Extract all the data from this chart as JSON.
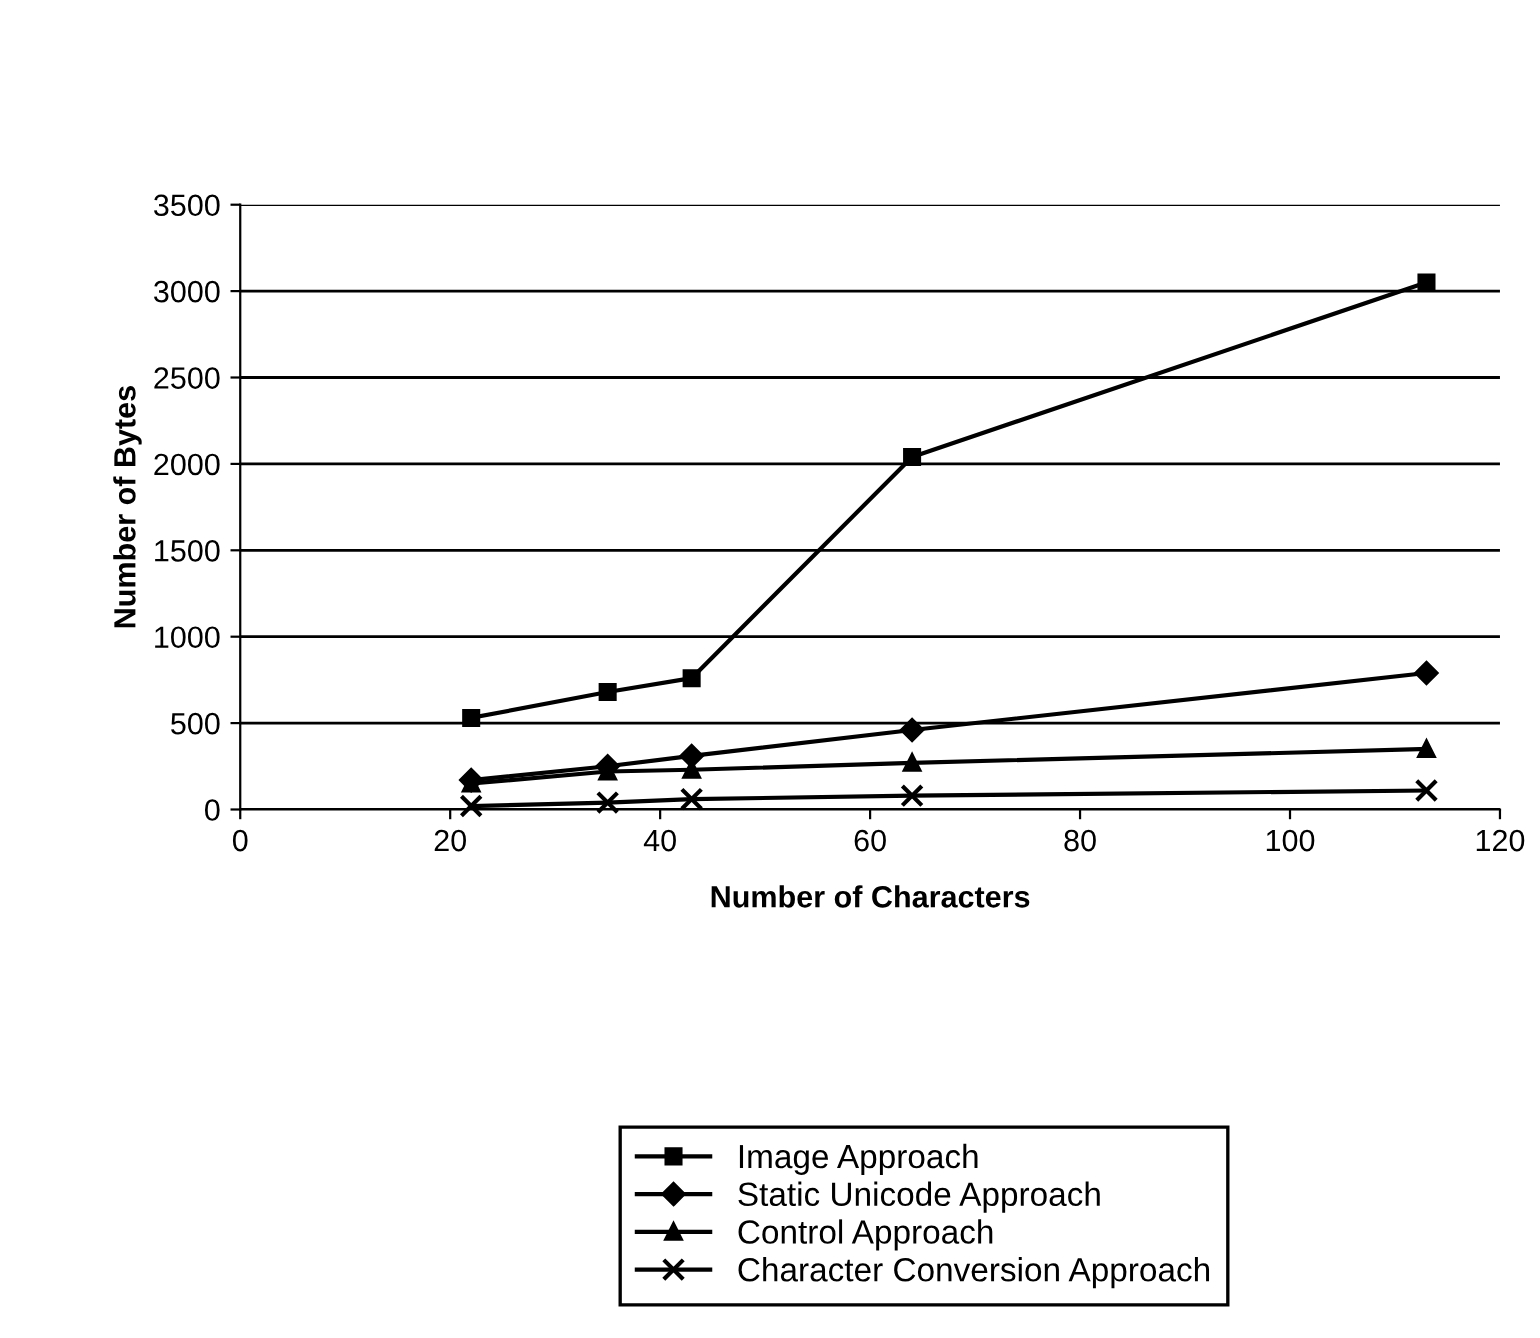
{
  "chart_data": {
    "type": "line",
    "xlabel": "Number of Characters",
    "ylabel": "Number of Bytes",
    "x": [
      22,
      35,
      43,
      64,
      113
    ],
    "series": [
      {
        "name": "Image Approach",
        "color": "#000000",
        "marker": "square",
        "values": [
          530,
          680,
          760,
          2040,
          3050
        ]
      },
      {
        "name": "Static Unicode Approach",
        "color": "#000000",
        "marker": "diamond",
        "values": [
          170,
          250,
          310,
          460,
          790
        ]
      },
      {
        "name": "Control Approach",
        "color": "#000000",
        "marker": "triangle",
        "values": [
          150,
          220,
          230,
          270,
          350
        ]
      },
      {
        "name": "Character Conversion Approach",
        "color": "#000000",
        "marker": "cross",
        "values": [
          20,
          40,
          60,
          80,
          110
        ]
      }
    ],
    "xlim": [
      0,
      120
    ],
    "xticks": [
      0,
      20,
      40,
      60,
      80,
      100,
      120
    ],
    "ylim": [
      0,
      3500
    ],
    "yticks": [
      0,
      500,
      1000,
      1500,
      2000,
      2500,
      3000,
      3500
    ],
    "grid": "y",
    "legend": "bottom",
    "line_style": "solid"
  }
}
